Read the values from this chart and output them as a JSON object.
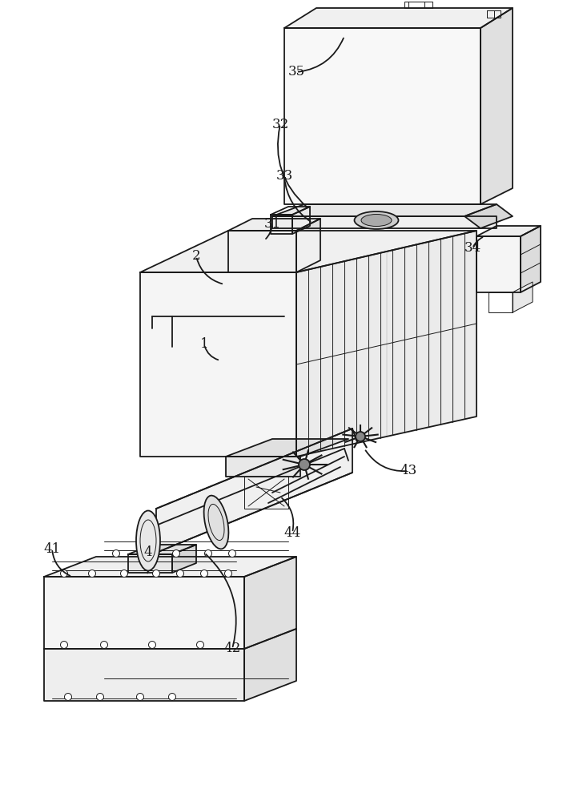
{
  "bg": "#ffffff",
  "lc": "#1a1a1a",
  "lw": 1.3,
  "tlw": 0.7,
  "fig_w": 7.08,
  "fig_h": 10.0
}
